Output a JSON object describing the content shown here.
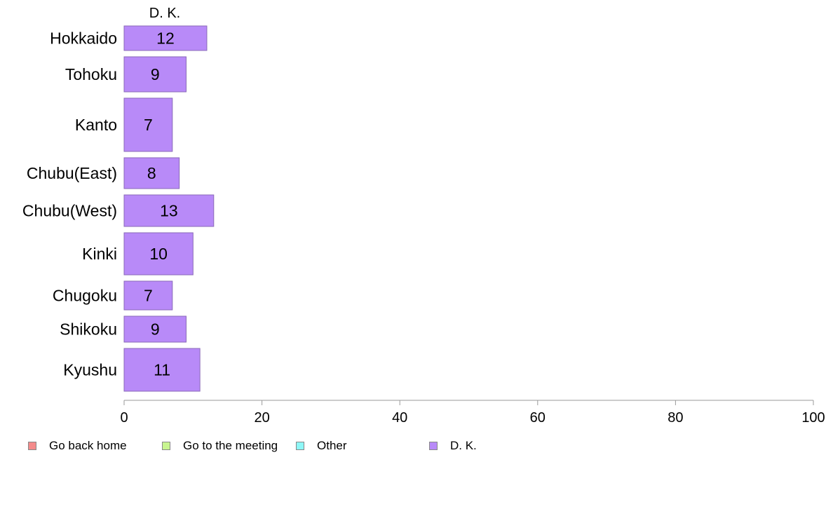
{
  "chart_data": {
    "type": "bar",
    "orientation": "horizontal",
    "stacked": true,
    "panel_title": "D. K.",
    "categories": [
      "Hokkaido",
      "Tohoku",
      "Kanto",
      "Chubu(East)",
      "Chubu(West)",
      "Kinki",
      "Chugoku",
      "Shikoku",
      "Kyushu"
    ],
    "series": [
      {
        "name": "Go back home",
        "color": "#f48b8b",
        "values": [
          0,
          0,
          0,
          0,
          0,
          0,
          0,
          0,
          0
        ]
      },
      {
        "name": "Go to the meeting",
        "color": "#c8f590",
        "values": [
          0,
          0,
          0,
          0,
          0,
          0,
          0,
          0,
          0
        ]
      },
      {
        "name": "Other",
        "color": "#8ef7f7",
        "values": [
          0,
          0,
          0,
          0,
          0,
          0,
          0,
          0,
          0
        ]
      },
      {
        "name": "D. K.",
        "color": "#b88af8",
        "values": [
          12,
          9,
          7,
          8,
          13,
          10,
          7,
          9,
          11
        ]
      }
    ],
    "data_labels": [
      "12",
      "9",
      "7",
      "8",
      "13",
      "10",
      "7",
      "9",
      "11"
    ],
    "xlim": [
      0,
      100
    ],
    "x_ticks": [
      "0",
      "20",
      "40",
      "60",
      "80",
      "100"
    ],
    "grid": false,
    "legend_position": "bottom"
  }
}
